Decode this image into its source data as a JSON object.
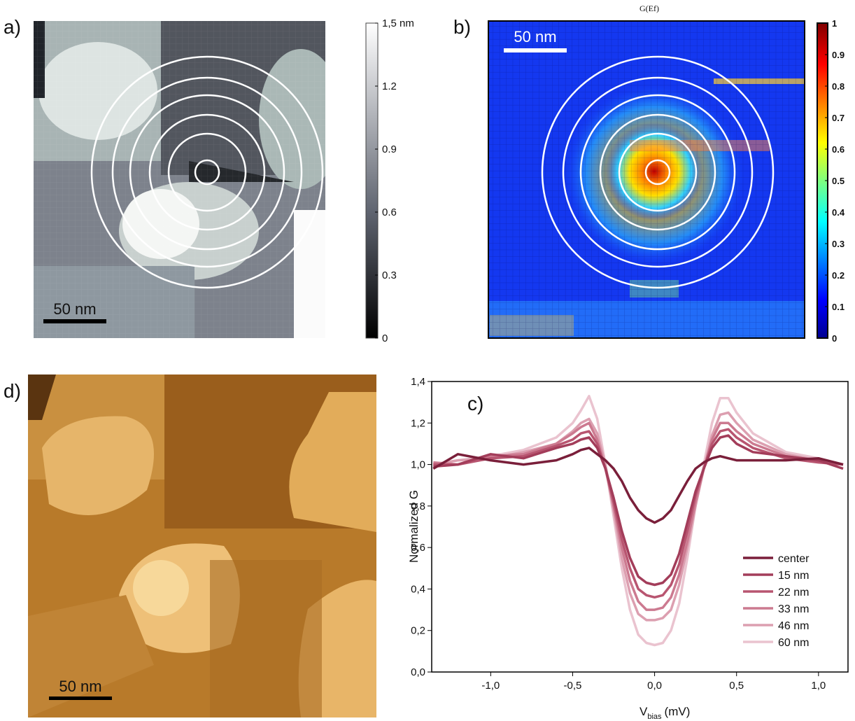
{
  "topography": {
    "label": "a)",
    "scalebar": "50 nm",
    "colorbar": {
      "lim": [
        0,
        1.5
      ],
      "ticks": [
        0,
        0.3,
        0.6,
        0.9,
        1.2,
        {
          "value": 1.5,
          "label": "1,5 nm"
        }
      ]
    }
  },
  "conductance_map": {
    "label": "b)",
    "title": "G(Ef)",
    "scalebar": "50 nm",
    "colorbar": {
      "lim": [
        0,
        1
      ],
      "ticks": [
        0,
        0.1,
        0.2,
        0.3,
        0.4,
        0.5,
        0.6,
        0.7,
        0.8,
        0.9,
        1
      ]
    }
  },
  "stm_image": {
    "label": "d)",
    "scalebar": "50 nm"
  },
  "chart_data": {
    "type": "line",
    "panel_label": "c)",
    "ylabel": "Normalized G",
    "xlabel": {
      "symbol": "V",
      "subscript": "bias",
      "unit": "(mV)"
    },
    "xlim": [
      -1.36,
      1.18
    ],
    "ylim": [
      0,
      1.4
    ],
    "xticks": [
      {
        "value": -1,
        "label": "-1,0"
      },
      {
        "value": -0.5,
        "label": "-0,5"
      },
      {
        "value": 0,
        "label": "0,0"
      },
      {
        "value": 0.5,
        "label": "0,5"
      },
      {
        "value": 1,
        "label": "1,0"
      }
    ],
    "yticks": [
      {
        "value": 0,
        "label": "0,0"
      },
      {
        "value": 0.2,
        "label": "0,2"
      },
      {
        "value": 0.4,
        "label": "0,4"
      },
      {
        "value": 0.6,
        "label": "0,6"
      },
      {
        "value": 0.8,
        "label": "0,8"
      },
      {
        "value": 1,
        "label": "1,0"
      },
      {
        "value": 1.2,
        "label": "1,2"
      },
      {
        "value": 1.4,
        "label": "1,4"
      }
    ],
    "x": [
      -1.35,
      -1.2,
      -1.0,
      -0.8,
      -0.6,
      -0.5,
      -0.45,
      -0.4,
      -0.35,
      -0.3,
      -0.25,
      -0.2,
      -0.15,
      -0.1,
      -0.05,
      0,
      0.05,
      0.1,
      0.15,
      0.2,
      0.25,
      0.3,
      0.35,
      0.4,
      0.45,
      0.5,
      0.6,
      0.8,
      1.0,
      1.15
    ],
    "series": [
      {
        "name": "center",
        "color": "#7a1f3a",
        "values": [
          0.98,
          1.05,
          1.02,
          1.0,
          1.02,
          1.05,
          1.07,
          1.08,
          1.05,
          1.02,
          0.98,
          0.92,
          0.84,
          0.78,
          0.74,
          0.72,
          0.74,
          0.78,
          0.85,
          0.92,
          0.98,
          1.01,
          1.03,
          1.04,
          1.03,
          1.02,
          1.02,
          1.02,
          1.03,
          1.0
        ]
      },
      {
        "name": "15 nm",
        "color": "#a33d5a",
        "values": [
          0.99,
          1.0,
          1.05,
          1.03,
          1.08,
          1.1,
          1.12,
          1.13,
          1.08,
          0.98,
          0.84,
          0.68,
          0.55,
          0.46,
          0.43,
          0.42,
          0.43,
          0.47,
          0.57,
          0.72,
          0.87,
          0.98,
          1.08,
          1.13,
          1.14,
          1.1,
          1.06,
          1.04,
          1.02,
          0.98
        ]
      },
      {
        "name": "22 nm",
        "color": "#b85570",
        "values": [
          1.0,
          1.0,
          1.03,
          1.04,
          1.09,
          1.12,
          1.15,
          1.16,
          1.1,
          0.98,
          0.82,
          0.64,
          0.5,
          0.4,
          0.37,
          0.36,
          0.37,
          0.42,
          0.52,
          0.68,
          0.85,
          0.98,
          1.1,
          1.16,
          1.17,
          1.13,
          1.08,
          1.03,
          1.01,
          1.0
        ]
      },
      {
        "name": "33 nm",
        "color": "#cc7a90",
        "values": [
          1.01,
          1.0,
          1.04,
          1.05,
          1.1,
          1.15,
          1.18,
          1.2,
          1.12,
          0.98,
          0.8,
          0.6,
          0.44,
          0.34,
          0.3,
          0.3,
          0.31,
          0.36,
          0.47,
          0.63,
          0.82,
          0.98,
          1.12,
          1.2,
          1.2,
          1.16,
          1.1,
          1.04,
          1.02,
          1.0
        ]
      },
      {
        "name": "46 nm",
        "color": "#dc9fb0",
        "values": [
          1.0,
          1.02,
          1.03,
          1.06,
          1.1,
          1.16,
          1.2,
          1.22,
          1.15,
          1.0,
          0.78,
          0.55,
          0.38,
          0.28,
          0.25,
          0.25,
          0.26,
          0.3,
          0.42,
          0.6,
          0.8,
          0.98,
          1.14,
          1.24,
          1.25,
          1.2,
          1.12,
          1.05,
          1.02,
          0.98
        ]
      },
      {
        "name": "60 nm",
        "color": "#eac3cf",
        "values": [
          1.0,
          1.02,
          1.04,
          1.07,
          1.13,
          1.2,
          1.26,
          1.33,
          1.22,
          1.0,
          0.75,
          0.5,
          0.3,
          0.18,
          0.14,
          0.13,
          0.14,
          0.2,
          0.33,
          0.55,
          0.8,
          1.0,
          1.2,
          1.32,
          1.32,
          1.25,
          1.15,
          1.06,
          1.03,
          1.0
        ]
      }
    ]
  }
}
